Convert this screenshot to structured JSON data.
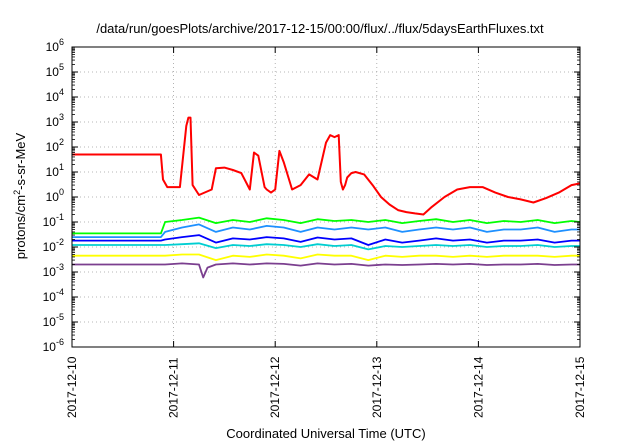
{
  "chart_data": {
    "type": "line",
    "title": "/data/run/goesPlots/archive/2017-12-15/00:00/flux/../flux/5daysEarthFluxes.txt",
    "xlabel": "Coordinated Universal Time (UTC)",
    "ylabel": "protons/cm2-s-sr-MeV",
    "y_scale": "log",
    "ylim": [
      1e-06,
      1000000.0
    ],
    "xlim": [
      "2017-12-10",
      "2017-12-15"
    ],
    "x_ticks": [
      "2017-12-10",
      "2017-12-11",
      "2017-12-12",
      "2017-12-13",
      "2017-12-14",
      "2017-12-15"
    ],
    "y_ticks": [
      1e-06,
      1e-05,
      0.0001,
      0.001,
      0.01,
      0.1,
      1.0,
      10.0,
      100.0,
      1000.0,
      10000.0,
      100000.0,
      1000000.0
    ],
    "grid": true,
    "legend": "none",
    "series": [
      {
        "color": "#ff0000",
        "x": [
          "2017-12-10 00:00",
          "2017-12-10 21:00",
          "2017-12-10 21:30",
          "2017-12-10 22:30",
          "2017-12-11 00:30",
          "2017-12-11 01:30",
          "2017-12-11 03:00",
          "2017-12-11 03:30",
          "2017-12-11 04:00",
          "2017-12-11 04:30",
          "2017-12-11 06:00",
          "2017-12-11 09:00",
          "2017-12-11 10:00",
          "2017-12-11 12:00",
          "2017-12-11 14:00",
          "2017-12-11 16:00",
          "2017-12-11 18:00",
          "2017-12-11 19:00",
          "2017-12-11 20:00",
          "2017-12-11 21:30",
          "2017-12-11 22:00",
          "2017-12-11 23:00",
          "2017-12-12 00:00",
          "2017-12-12 01:00",
          "2017-12-12 02:00",
          "2017-12-12 04:00",
          "2017-12-12 06:00",
          "2017-12-12 08:00",
          "2017-12-12 10:00",
          "2017-12-12 12:00",
          "2017-12-12 13:00",
          "2017-12-12 14:00",
          "2017-12-12 15:00",
          "2017-12-12 15:30",
          "2017-12-12 16:00",
          "2017-12-12 16:30",
          "2017-12-12 17:00",
          "2017-12-12 18:00",
          "2017-12-12 19:00",
          "2017-12-12 21:00",
          "2017-12-12 23:00",
          "2017-12-13 01:00",
          "2017-12-13 03:00",
          "2017-12-13 05:00",
          "2017-12-13 07:00",
          "2017-12-13 09:00",
          "2017-12-13 11:00",
          "2017-12-13 13:00",
          "2017-12-13 16:00",
          "2017-12-13 19:00",
          "2017-12-13 22:00",
          "2017-12-14 01:00",
          "2017-12-14 04:00",
          "2017-12-14 07:00",
          "2017-12-14 10:00",
          "2017-12-14 13:00",
          "2017-12-14 16:00",
          "2017-12-14 19:00",
          "2017-12-14 22:00",
          "2017-12-15 00:00"
        ],
        "values": [
          50,
          50,
          5,
          2.5,
          2.5,
          2.5,
          700,
          1500,
          1500,
          3,
          1.2,
          2,
          14,
          15,
          12,
          9,
          2,
          60,
          45,
          2.5,
          2,
          1.5,
          2,
          70,
          25,
          2,
          3,
          8,
          5,
          150,
          300,
          250,
          300,
          4,
          2,
          3,
          6,
          9,
          10,
          8,
          3,
          1,
          0.5,
          0.3,
          0.25,
          0.22,
          0.2,
          0.4,
          1,
          2,
          2.5,
          2.5,
          1.5,
          1,
          0.8,
          0.6,
          0.9,
          1.5,
          3,
          3.5
        ]
      },
      {
        "color": "#00ff00",
        "x": [
          "2017-12-10 00:00",
          "2017-12-10 21:00",
          "2017-12-10 22:00",
          "2017-12-11 02:00",
          "2017-12-11 06:00",
          "2017-12-11 10:00",
          "2017-12-11 14:00",
          "2017-12-11 18:00",
          "2017-12-11 22:00",
          "2017-12-12 02:00",
          "2017-12-12 06:00",
          "2017-12-12 10:00",
          "2017-12-12 14:00",
          "2017-12-12 18:00",
          "2017-12-12 22:00",
          "2017-12-13 02:00",
          "2017-12-13 06:00",
          "2017-12-13 10:00",
          "2017-12-13 14:00",
          "2017-12-13 18:00",
          "2017-12-13 22:00",
          "2017-12-14 02:00",
          "2017-12-14 06:00",
          "2017-12-14 10:00",
          "2017-12-14 14:00",
          "2017-12-14 18:00",
          "2017-12-14 22:00",
          "2017-12-15 00:00"
        ],
        "values": [
          0.035,
          0.035,
          0.1,
          0.12,
          0.15,
          0.09,
          0.12,
          0.1,
          0.14,
          0.12,
          0.09,
          0.13,
          0.11,
          0.12,
          0.1,
          0.12,
          0.09,
          0.11,
          0.13,
          0.1,
          0.12,
          0.09,
          0.11,
          0.1,
          0.12,
          0.09,
          0.11,
          0.1
        ]
      },
      {
        "color": "#1e90ff",
        "x": [
          "2017-12-10 00:00",
          "2017-12-10 21:00",
          "2017-12-10 22:00",
          "2017-12-11 02:00",
          "2017-12-11 06:00",
          "2017-12-11 10:00",
          "2017-12-11 14:00",
          "2017-12-11 18:00",
          "2017-12-11 22:00",
          "2017-12-12 02:00",
          "2017-12-12 06:00",
          "2017-12-12 10:00",
          "2017-12-12 14:00",
          "2017-12-12 18:00",
          "2017-12-12 22:00",
          "2017-12-13 02:00",
          "2017-12-13 06:00",
          "2017-12-13 10:00",
          "2017-12-13 14:00",
          "2017-12-13 18:00",
          "2017-12-13 22:00",
          "2017-12-14 02:00",
          "2017-12-14 06:00",
          "2017-12-14 10:00",
          "2017-12-14 14:00",
          "2017-12-14 18:00",
          "2017-12-14 22:00",
          "2017-12-15 00:00"
        ],
        "values": [
          0.025,
          0.025,
          0.04,
          0.06,
          0.08,
          0.04,
          0.06,
          0.05,
          0.07,
          0.06,
          0.04,
          0.06,
          0.05,
          0.06,
          0.05,
          0.06,
          0.04,
          0.05,
          0.06,
          0.05,
          0.06,
          0.04,
          0.05,
          0.05,
          0.06,
          0.04,
          0.05,
          0.05
        ]
      },
      {
        "color": "#0000ff",
        "x": [
          "2017-12-10 00:00",
          "2017-12-10 21:00",
          "2017-12-10 22:00",
          "2017-12-11 02:00",
          "2017-12-11 06:00",
          "2017-12-11 10:00",
          "2017-12-11 14:00",
          "2017-12-11 18:00",
          "2017-12-11 22:00",
          "2017-12-12 02:00",
          "2017-12-12 06:00",
          "2017-12-12 10:00",
          "2017-12-12 14:00",
          "2017-12-12 18:00",
          "2017-12-12 22:00",
          "2017-12-13 02:00",
          "2017-12-13 06:00",
          "2017-12-13 10:00",
          "2017-12-13 14:00",
          "2017-12-13 18:00",
          "2017-12-13 22:00",
          "2017-12-14 02:00",
          "2017-12-14 06:00",
          "2017-12-14 10:00",
          "2017-12-14 14:00",
          "2017-12-14 18:00",
          "2017-12-14 22:00",
          "2017-12-15 00:00"
        ],
        "values": [
          0.018,
          0.018,
          0.02,
          0.025,
          0.03,
          0.015,
          0.022,
          0.02,
          0.025,
          0.022,
          0.016,
          0.024,
          0.02,
          0.022,
          0.012,
          0.02,
          0.015,
          0.018,
          0.022,
          0.018,
          0.02,
          0.015,
          0.018,
          0.018,
          0.02,
          0.015,
          0.018,
          0.018
        ]
      },
      {
        "color": "#00ced1",
        "x": [
          "2017-12-10 00:00",
          "2017-12-10 21:00",
          "2017-12-10 22:00",
          "2017-12-11 02:00",
          "2017-12-11 06:00",
          "2017-12-11 10:00",
          "2017-12-11 14:00",
          "2017-12-11 18:00",
          "2017-12-11 22:00",
          "2017-12-12 02:00",
          "2017-12-12 06:00",
          "2017-12-12 10:00",
          "2017-12-12 14:00",
          "2017-12-12 18:00",
          "2017-12-12 22:00",
          "2017-12-13 02:00",
          "2017-12-13 06:00",
          "2017-12-13 10:00",
          "2017-12-13 14:00",
          "2017-12-13 18:00",
          "2017-12-13 22:00",
          "2017-12-14 02:00",
          "2017-12-14 06:00",
          "2017-12-14 10:00",
          "2017-12-14 14:00",
          "2017-12-14 18:00",
          "2017-12-14 22:00",
          "2017-12-15 00:00"
        ],
        "values": [
          0.012,
          0.012,
          0.012,
          0.013,
          0.014,
          0.009,
          0.012,
          0.011,
          0.013,
          0.012,
          0.01,
          0.013,
          0.011,
          0.012,
          0.008,
          0.011,
          0.01,
          0.011,
          0.012,
          0.011,
          0.012,
          0.01,
          0.011,
          0.011,
          0.012,
          0.01,
          0.011,
          0.011
        ]
      },
      {
        "color": "#ffff00",
        "x": [
          "2017-12-10 00:00",
          "2017-12-10 21:00",
          "2017-12-10 22:00",
          "2017-12-11 02:00",
          "2017-12-11 06:00",
          "2017-12-11 10:00",
          "2017-12-11 14:00",
          "2017-12-11 18:00",
          "2017-12-11 22:00",
          "2017-12-12 02:00",
          "2017-12-12 06:00",
          "2017-12-12 10:00",
          "2017-12-12 14:00",
          "2017-12-12 18:00",
          "2017-12-12 22:00",
          "2017-12-13 02:00",
          "2017-12-13 06:00",
          "2017-12-13 10:00",
          "2017-12-13 14:00",
          "2017-12-13 18:00",
          "2017-12-13 22:00",
          "2017-12-14 02:00",
          "2017-12-14 06:00",
          "2017-12-14 10:00",
          "2017-12-14 14:00",
          "2017-12-14 18:00",
          "2017-12-14 22:00",
          "2017-12-15 00:00"
        ],
        "values": [
          0.0045,
          0.0045,
          0.0045,
          0.005,
          0.005,
          0.003,
          0.0045,
          0.004,
          0.005,
          0.0045,
          0.0035,
          0.005,
          0.0045,
          0.0045,
          0.003,
          0.0045,
          0.004,
          0.0045,
          0.0045,
          0.004,
          0.0045,
          0.004,
          0.0045,
          0.0045,
          0.0045,
          0.004,
          0.0045,
          0.0045
        ]
      },
      {
        "color": "#7b3f8f",
        "x": [
          "2017-12-10 00:00",
          "2017-12-10 21:00",
          "2017-12-10 22:00",
          "2017-12-11 02:00",
          "2017-12-11 06:00",
          "2017-12-11 07:00",
          "2017-12-11 08:00",
          "2017-12-11 10:00",
          "2017-12-11 14:00",
          "2017-12-11 18:00",
          "2017-12-11 22:00",
          "2017-12-12 02:00",
          "2017-12-12 06:00",
          "2017-12-12 10:00",
          "2017-12-12 14:00",
          "2017-12-12 18:00",
          "2017-12-12 22:00",
          "2017-12-13 02:00",
          "2017-12-13 06:00",
          "2017-12-13 10:00",
          "2017-12-13 14:00",
          "2017-12-13 18:00",
          "2017-12-13 22:00",
          "2017-12-14 02:00",
          "2017-12-14 06:00",
          "2017-12-14 10:00",
          "2017-12-14 14:00",
          "2017-12-14 18:00",
          "2017-12-14 22:00",
          "2017-12-15 00:00"
        ],
        "values": [
          0.002,
          0.002,
          0.002,
          0.0022,
          0.002,
          0.0006,
          0.0015,
          0.002,
          0.0022,
          0.002,
          0.0022,
          0.0021,
          0.0018,
          0.0022,
          0.002,
          0.0021,
          0.0018,
          0.002,
          0.0019,
          0.002,
          0.0021,
          0.002,
          0.0021,
          0.0019,
          0.002,
          0.002,
          0.0021,
          0.0019,
          0.002,
          0.002
        ]
      }
    ]
  }
}
